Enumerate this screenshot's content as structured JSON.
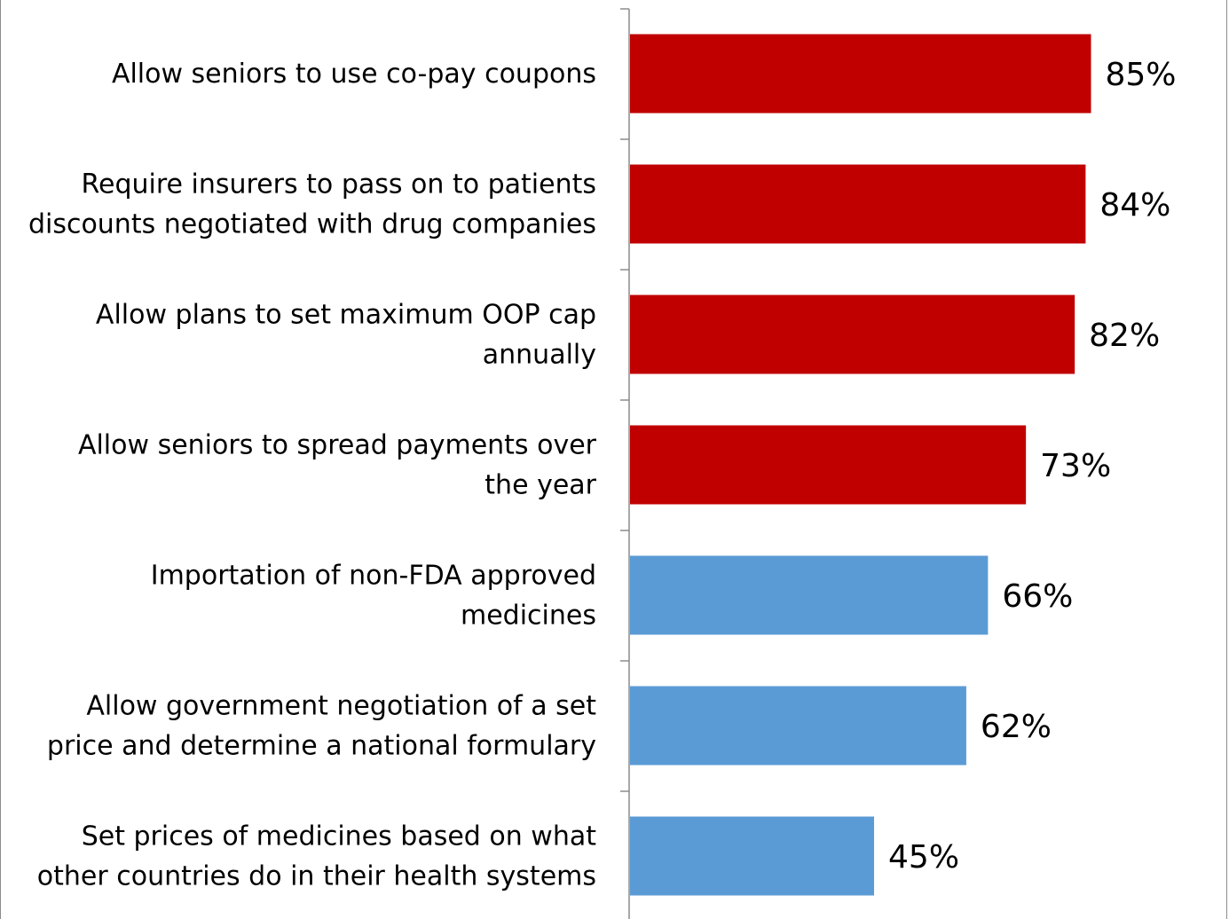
{
  "chart_data": {
    "type": "bar",
    "orientation": "horizontal",
    "categories": [
      [
        "Allow seniors to use co-pay coupons"
      ],
      [
        "Require insurers to pass on to patients",
        "discounts negotiated with drug companies"
      ],
      [
        "Allow plans to set maximum OOP cap",
        "annually"
      ],
      [
        "Allow seniors to spread payments over",
        "the year"
      ],
      [
        "Importation of non-FDA approved",
        "medicines"
      ],
      [
        "Allow government negotiation of a set",
        "price and determine a national formulary"
      ],
      [
        "Set prices of medicines based on what",
        "other countries do in their health systems"
      ]
    ],
    "values": [
      85,
      84,
      82,
      73,
      66,
      62,
      45
    ],
    "value_labels": [
      "85%",
      "84%",
      "82%",
      "73%",
      "66%",
      "62%",
      "45%"
    ],
    "colors": [
      "#c00000",
      "#c00000",
      "#c00000",
      "#c00000",
      "#5b9bd5",
      "#5b9bd5",
      "#5b9bd5"
    ],
    "xlim": [
      0,
      100
    ],
    "title": "",
    "xlabel": "",
    "ylabel": "",
    "grid": false,
    "legend": "none"
  }
}
